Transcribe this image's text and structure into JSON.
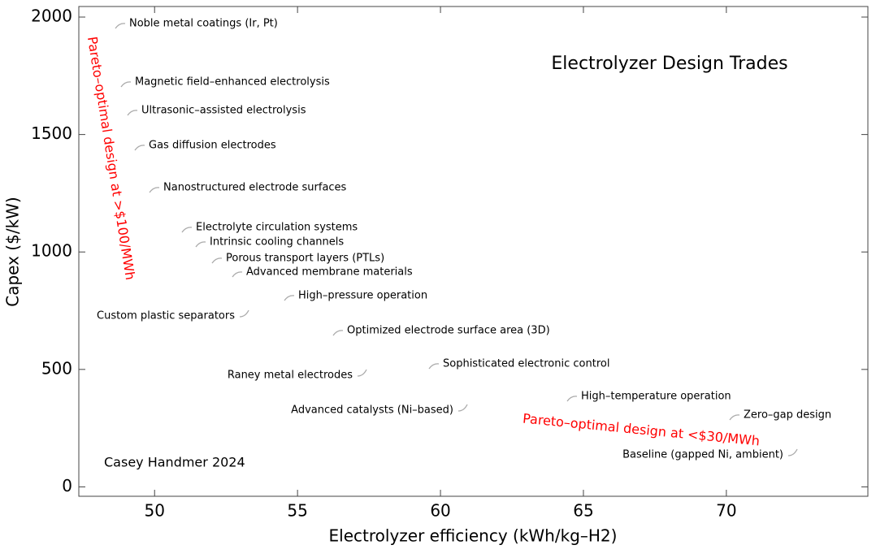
{
  "chart_data": {
    "type": "line",
    "title": "Electrolyzer Design Trades",
    "credit": "Casey Handmer 2024",
    "x_label": "Electrolyzer efficiency (kWh/kg–H2)",
    "y_label": "Capex ($/kW)",
    "x": [
      48.38,
      48.61,
      48.86,
      49.09,
      49.57,
      50.34,
      51.19,
      51.73,
      52.56,
      53.58,
      54.37,
      55.97,
      57.39,
      59.38,
      61.16,
      64.49,
      69.97,
      72.78
    ],
    "series": [
      {
        "color": "#5b7fb4",
        "values": [
          1919,
          1667,
          1553,
          1397,
          1217,
          1086,
          992,
          920,
          858,
          788,
          757,
          609,
          539,
          467,
          387,
          328,
          249,
          197
        ]
      }
    ],
    "xlim": [
      47.35,
      74.95
    ],
    "ylim": [
      -40,
      2045
    ],
    "xticks": [
      50,
      55,
      60,
      65,
      70
    ],
    "yticks": [
      0,
      500,
      1000,
      1500,
      2000
    ],
    "annotations": [
      "Noble metal coatings (Ir, Pt)",
      "Magnetic field–enhanced electrolysis",
      "Ultrasonic–assisted electrolysis",
      "Gas diffusion electrodes",
      "Nanostructured electrode surfaces",
      "Electrolyte circulation systems",
      "Intrinsic cooling channels",
      "Porous transport layers (PTLs)",
      "Advanced membrane materials",
      "High–pressure operation",
      "Custom plastic separators",
      "Optimized electrode surface area (3D)",
      "Raney metal electrodes",
      "Sophisticated electronic control",
      "Advanced catalysts (Ni–based)",
      "High–temperature operation",
      "Zero–gap design",
      "Baseline (gapped Ni, ambient)"
    ],
    "notes": [
      {
        "text": "Pareto–optimal design at >$100/MWh",
        "color": "#ff0000"
      },
      {
        "text": "Pareto–optimal design at <$30/MWh",
        "color": "#ff0000"
      }
    ]
  }
}
